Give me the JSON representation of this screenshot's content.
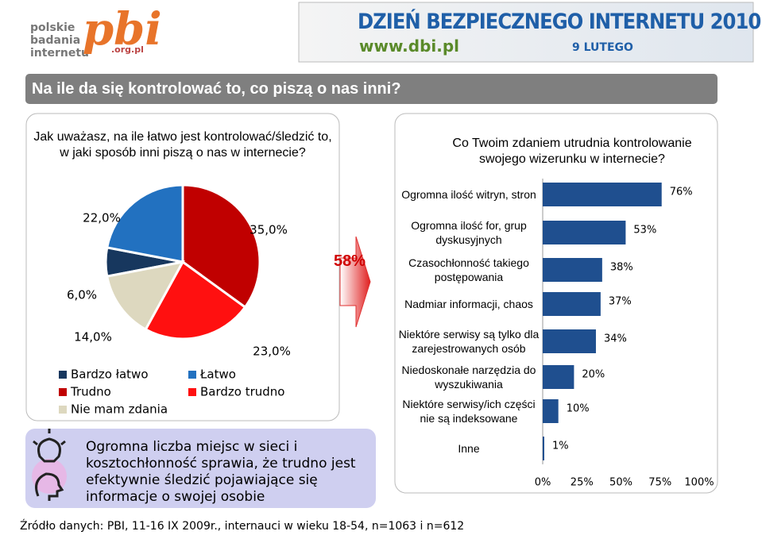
{
  "header": {
    "logo": {
      "line1": "polskie",
      "line2": "badania",
      "line3": "internetu",
      "brand": "pbi",
      "domain": ".org.pl"
    },
    "banner": {
      "title": "DZIEŃ BEZPIECZNEGO INTERNETU 2010",
      "url": "www.dbi.pl",
      "date": "9 LUTEGO"
    }
  },
  "title": "Na ile da się kontrolować to, co piszą o nas inni?",
  "chart_data": [
    {
      "type": "pie",
      "title": "Jak uważasz, na ile łatwo jest kontrolować/śledzić to, w jaki sposób inni piszą o nas w internecie?",
      "categories": [
        "Bardzo łatwo",
        "Łatwo",
        "Trudno",
        "Bardzo trudno",
        "Nie mam zdania"
      ],
      "values": [
        6,
        22,
        35,
        23,
        14
      ],
      "value_labels": [
        "6,0%",
        "22,0%",
        "35,0%",
        "23,0%",
        "14,0%"
      ],
      "colors": [
        "#17375e",
        "#2271c0",
        "#c00000",
        "#ff1010",
        "#ddd8bf"
      ]
    },
    {
      "type": "bar",
      "orientation": "horizontal",
      "title": "Co Twoim zdaniem utrudnia kontrolowanie swojego wizerunku w internecie?",
      "categories": [
        "Ogromna ilość witryn, stron",
        "Ogromna ilość for, grup dyskusyjnych",
        "Czasochłonność takiego postępowania",
        "Nadmiar informacji, chaos",
        "Niektóre serwisy są tylko dla zarejestrowanych osób",
        "Niedoskonałe narzędzia do wyszukiwania",
        "Niektóre serwisy/ich części nie są indeksowane",
        "Inne"
      ],
      "values": [
        76,
        53,
        38,
        37,
        34,
        20,
        10,
        1
      ],
      "value_labels": [
        "76%",
        "53%",
        "38%",
        "37%",
        "34%",
        "20%",
        "10%",
        "1%"
      ],
      "color": "#1f4f8f",
      "xlim": [
        0,
        100
      ],
      "xticks": [
        {
          "value": 0,
          "label": "0%"
        },
        {
          "value": 25,
          "label": "25%"
        },
        {
          "value": 50,
          "label": "50%"
        },
        {
          "value": 75,
          "label": "75%"
        },
        {
          "value": 100,
          "label": "100%"
        }
      ]
    }
  ],
  "arrow_label": "58%",
  "callout": "Ogromna liczba miejsc w sieci i kosztochłonność sprawia, że trudno jest efektywnie śledzić pojawiające się informacje o swojej osobie",
  "source": "Źródło danych: PBI, 11-16 IX 2009r., internauci w wieku 18-54, n=1063 i n=612"
}
